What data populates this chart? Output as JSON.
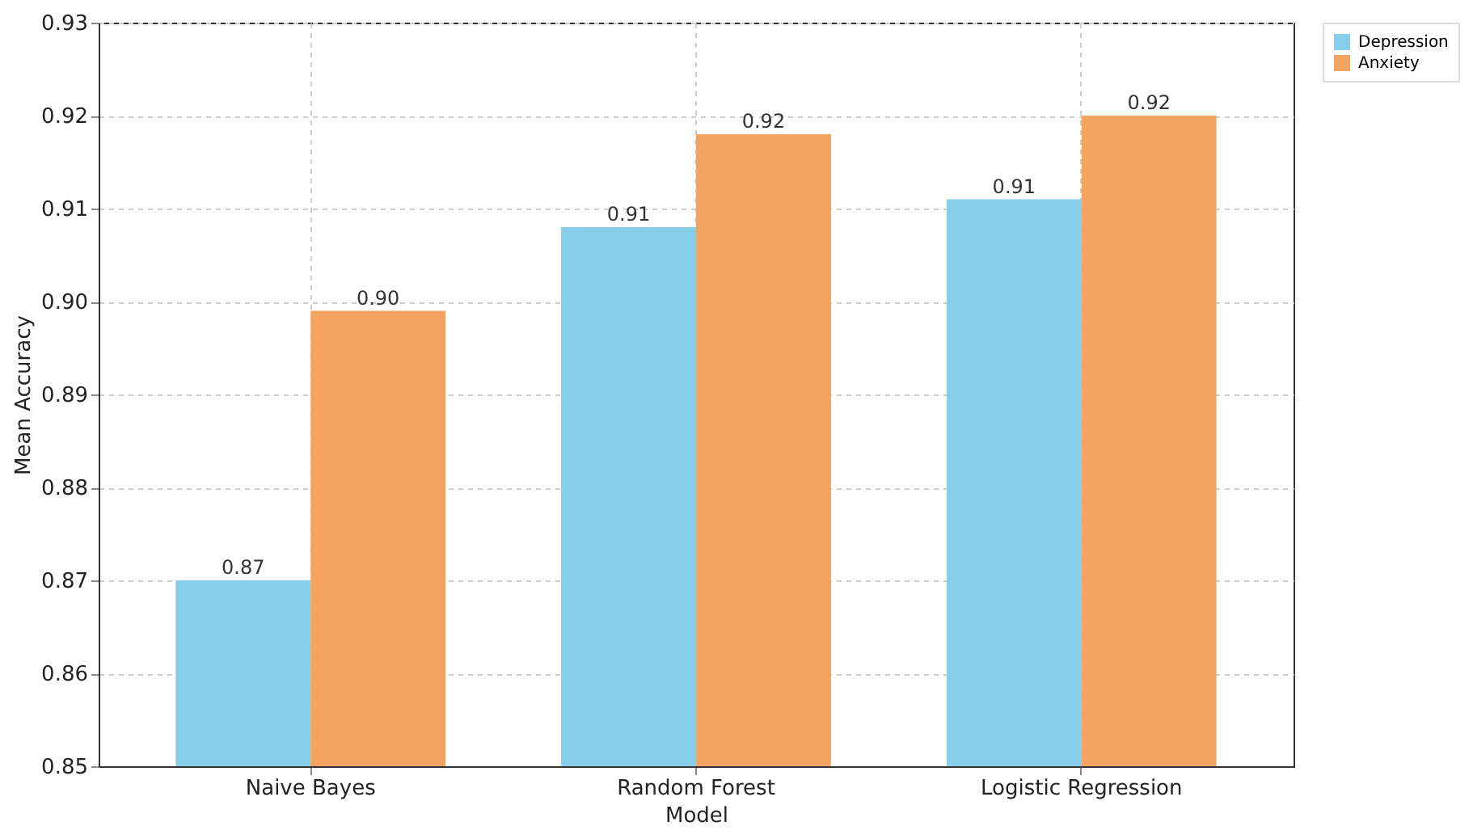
{
  "chart_data": {
    "type": "bar",
    "xlabel": "Model",
    "ylabel": "Mean Accuracy",
    "categories": [
      "Naive Bayes",
      "Random Forest",
      "Logistic Regression"
    ],
    "series": [
      {
        "name": "Depression",
        "color": "#87ceeb",
        "values": [
          0.87,
          0.908,
          0.911
        ],
        "value_labels": [
          "0.87",
          "0.91",
          "0.91"
        ]
      },
      {
        "name": "Anxiety",
        "color": "#f4a460",
        "values": [
          0.899,
          0.918,
          0.92
        ],
        "value_labels": [
          "0.90",
          "0.92",
          "0.92"
        ]
      }
    ],
    "ylim": [
      0.85,
      0.93
    ],
    "yticks": [
      0.85,
      {
        "value": 0.86,
        "label": "0.86"
      },
      {
        "value": 0.87,
        "label": "0.87"
      },
      {
        "value": 0.88,
        "label": "0.88"
      },
      {
        "value": 0.89,
        "label": "0.89"
      },
      {
        "value": 0.9,
        "label": "0.90"
      },
      {
        "value": 0.91,
        "label": "0.91"
      },
      {
        "value": 0.92,
        "label": "0.92"
      },
      {
        "value": 0.93,
        "label": "0.93"
      }
    ],
    "grid": true,
    "legend": "top right"
  }
}
